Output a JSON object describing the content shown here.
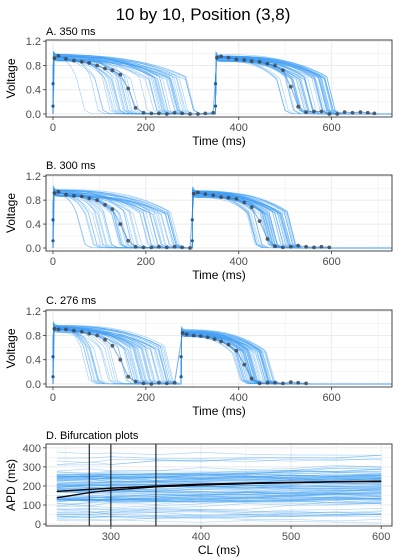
{
  "figure": {
    "title": "10 by 10, Position (3,8)"
  },
  "colors": {
    "trace_color": "#3d9df3",
    "mean_trace_color": "#1f78d1",
    "point_color": "#3f4650",
    "bifurcation_mean_color": "#000000",
    "vertical_marker_color": "#000000",
    "grid_color": "#ebebeb",
    "panel_border_color": "#333333"
  },
  "chart_data": [
    {
      "panel": "A",
      "title": "A. 350 ms",
      "type": "line",
      "xlabel": "Time (ms)",
      "ylabel": "Voltage",
      "xlim": [
        -15,
        730
      ],
      "ylim": [
        -0.05,
        1.22
      ],
      "xticks": [
        0,
        200,
        400,
        600
      ],
      "yticks": [
        0.0,
        0.4,
        0.8,
        1.2
      ],
      "ytick_labels": [
        "0.0",
        "0.4",
        "0.8",
        "1.2"
      ],
      "grid": true,
      "cycle_length": 350,
      "beats": [
        {
          "start": 0,
          "plateau": 0.93,
          "apd_range": [
            45,
            290
          ]
        },
        {
          "start": 350,
          "plateau": 0.92,
          "apd_range": [
            130,
            240
          ]
        }
      ],
      "upstroke_points": [
        [
          0,
          0.13
        ],
        [
          0,
          0.5
        ],
        [
          350,
          0.13
        ],
        [
          350,
          0.5
        ]
      ],
      "points": [
        [
          3,
          0.92
        ],
        [
          12,
          0.96
        ],
        [
          28,
          0.91
        ],
        [
          45,
          0.88
        ],
        [
          62,
          0.86
        ],
        [
          78,
          0.84
        ],
        [
          95,
          0.8
        ],
        [
          112,
          0.75
        ],
        [
          128,
          0.72
        ],
        [
          145,
          0.65
        ],
        [
          162,
          0.42
        ],
        [
          178,
          0.1
        ],
        [
          195,
          0.02
        ],
        [
          212,
          0.01
        ],
        [
          228,
          0.01
        ],
        [
          245,
          0.0
        ],
        [
          262,
          0.02
        ],
        [
          278,
          0.01
        ],
        [
          295,
          0.0
        ],
        [
          312,
          0.0
        ],
        [
          328,
          0.01
        ],
        [
          345,
          0.02
        ],
        [
          353,
          0.93
        ],
        [
          362,
          0.95
        ],
        [
          378,
          0.93
        ],
        [
          395,
          0.9
        ],
        [
          412,
          0.89
        ],
        [
          428,
          0.87
        ],
        [
          445,
          0.86
        ],
        [
          462,
          0.83
        ],
        [
          478,
          0.8
        ],
        [
          495,
          0.72
        ],
        [
          512,
          0.45
        ],
        [
          528,
          0.12
        ],
        [
          545,
          0.03
        ],
        [
          562,
          0.04
        ],
        [
          578,
          0.04
        ],
        [
          595,
          0.0
        ],
        [
          612,
          0.0
        ],
        [
          628,
          0.03
        ],
        [
          645,
          0.02
        ],
        [
          662,
          0.03
        ],
        [
          678,
          0.02
        ],
        [
          692,
          0.01
        ]
      ]
    },
    {
      "panel": "B",
      "title": "B. 300 ms",
      "type": "line",
      "xlabel": "Time (ms)",
      "ylabel": "Voltage",
      "xlim": [
        -15,
        730
      ],
      "ylim": [
        -0.05,
        1.22
      ],
      "xticks": [
        0,
        200,
        400,
        600
      ],
      "yticks": [
        0.0,
        0.4,
        0.8,
        1.2
      ],
      "ytick_labels": [
        "0.0",
        "0.4",
        "0.8",
        "1.2"
      ],
      "grid": true,
      "cycle_length": 300,
      "beats": [
        {
          "start": 0,
          "plateau": 0.92,
          "apd_range": [
            45,
            260
          ]
        },
        {
          "start": 300,
          "plateau": 0.9,
          "apd_range": [
            115,
            205
          ]
        }
      ],
      "upstroke_points": [
        [
          0,
          0.12
        ],
        [
          0,
          0.47
        ],
        [
          300,
          0.12
        ],
        [
          300,
          0.47
        ]
      ],
      "points": [
        [
          3,
          0.92
        ],
        [
          12,
          0.94
        ],
        [
          28,
          0.89
        ],
        [
          45,
          0.87
        ],
        [
          62,
          0.86
        ],
        [
          78,
          0.83
        ],
        [
          95,
          0.8
        ],
        [
          112,
          0.72
        ],
        [
          128,
          0.65
        ],
        [
          145,
          0.4
        ],
        [
          162,
          0.12
        ],
        [
          178,
          0.02
        ],
        [
          195,
          0.01
        ],
        [
          212,
          0.01
        ],
        [
          228,
          0.02
        ],
        [
          245,
          0.01
        ],
        [
          262,
          0.02
        ],
        [
          278,
          0.01
        ],
        [
          295,
          0.0
        ],
        [
          303,
          0.91
        ],
        [
          312,
          0.93
        ],
        [
          328,
          0.9
        ],
        [
          345,
          0.88
        ],
        [
          362,
          0.85
        ],
        [
          378,
          0.84
        ],
        [
          395,
          0.82
        ],
        [
          412,
          0.76
        ],
        [
          428,
          0.68
        ],
        [
          445,
          0.45
        ],
        [
          462,
          0.15
        ],
        [
          478,
          0.03
        ],
        [
          495,
          0.01
        ],
        [
          512,
          0.02
        ],
        [
          528,
          0.04
        ],
        [
          545,
          0.02
        ],
        [
          562,
          0.01
        ],
        [
          578,
          0.02
        ],
        [
          595,
          0.01
        ]
      ]
    },
    {
      "panel": "C",
      "title": "C. 276 ms",
      "type": "line",
      "xlabel": "Time (ms)",
      "ylabel": "Voltage",
      "xlim": [
        -15,
        730
      ],
      "ylim": [
        -0.05,
        1.22
      ],
      "xticks": [
        0,
        200,
        400,
        600
      ],
      "yticks": [
        0.0,
        0.4,
        0.8,
        1.2
      ],
      "ytick_labels": [
        "0.0",
        "0.4",
        "0.8",
        "1.2"
      ],
      "grid": true,
      "cycle_length": 276,
      "beats": [
        {
          "start": 0,
          "plateau": 0.91,
          "apd_range": [
            45,
            245
          ]
        },
        {
          "start": 276,
          "plateau": 0.84,
          "apd_range": [
            110,
            185
          ]
        }
      ],
      "upstroke_points": [
        [
          0,
          0.12
        ],
        [
          0,
          0.45
        ],
        [
          276,
          0.12
        ],
        [
          276,
          0.45
        ]
      ],
      "points": [
        [
          3,
          0.91
        ],
        [
          12,
          0.9
        ],
        [
          28,
          0.9
        ],
        [
          45,
          0.88
        ],
        [
          62,
          0.86
        ],
        [
          78,
          0.83
        ],
        [
          95,
          0.8
        ],
        [
          112,
          0.73
        ],
        [
          128,
          0.63
        ],
        [
          145,
          0.4
        ],
        [
          162,
          0.12
        ],
        [
          178,
          0.04
        ],
        [
          195,
          0.01
        ],
        [
          212,
          0.0
        ],
        [
          228,
          0.02
        ],
        [
          245,
          0.01
        ],
        [
          262,
          0.02
        ],
        [
          279,
          0.84
        ],
        [
          288,
          0.82
        ],
        [
          303,
          0.8
        ],
        [
          318,
          0.79
        ],
        [
          333,
          0.77
        ],
        [
          348,
          0.74
        ],
        [
          362,
          0.7
        ],
        [
          378,
          0.65
        ],
        [
          395,
          0.55
        ],
        [
          412,
          0.32
        ],
        [
          428,
          0.09
        ],
        [
          445,
          0.01
        ],
        [
          462,
          0.02
        ],
        [
          478,
          0.02
        ],
        [
          495,
          0.01
        ],
        [
          512,
          0.03
        ],
        [
          528,
          0.02
        ],
        [
          545,
          0.01
        ]
      ]
    },
    {
      "panel": "D",
      "title": "D. Bifurcation plots",
      "type": "line",
      "xlabel": "CL (ms)",
      "ylabel": "APD (ms)",
      "xlim": [
        228,
        612
      ],
      "ylim": [
        -10,
        420
      ],
      "xticks": [
        300,
        400,
        500,
        600
      ],
      "yticks": [
        0,
        100,
        200,
        300,
        400
      ],
      "ytick_labels": [
        "0",
        "100",
        "200",
        "300",
        "400"
      ],
      "grid": true,
      "vertical_lines": [
        276,
        300,
        350
      ],
      "series": [
        {
          "x": [
            240,
            276,
            300,
            350,
            400,
            450,
            500,
            550,
            600
          ],
          "y": [
            138,
            165,
            178,
            195,
            205,
            212,
            217,
            221,
            223
          ]
        },
        {
          "x": [
            240,
            276,
            300,
            350,
            400,
            450,
            500,
            550,
            600
          ],
          "y": [
            172,
            182,
            188,
            200,
            209,
            215,
            219,
            223,
            225
          ]
        }
      ]
    }
  ]
}
